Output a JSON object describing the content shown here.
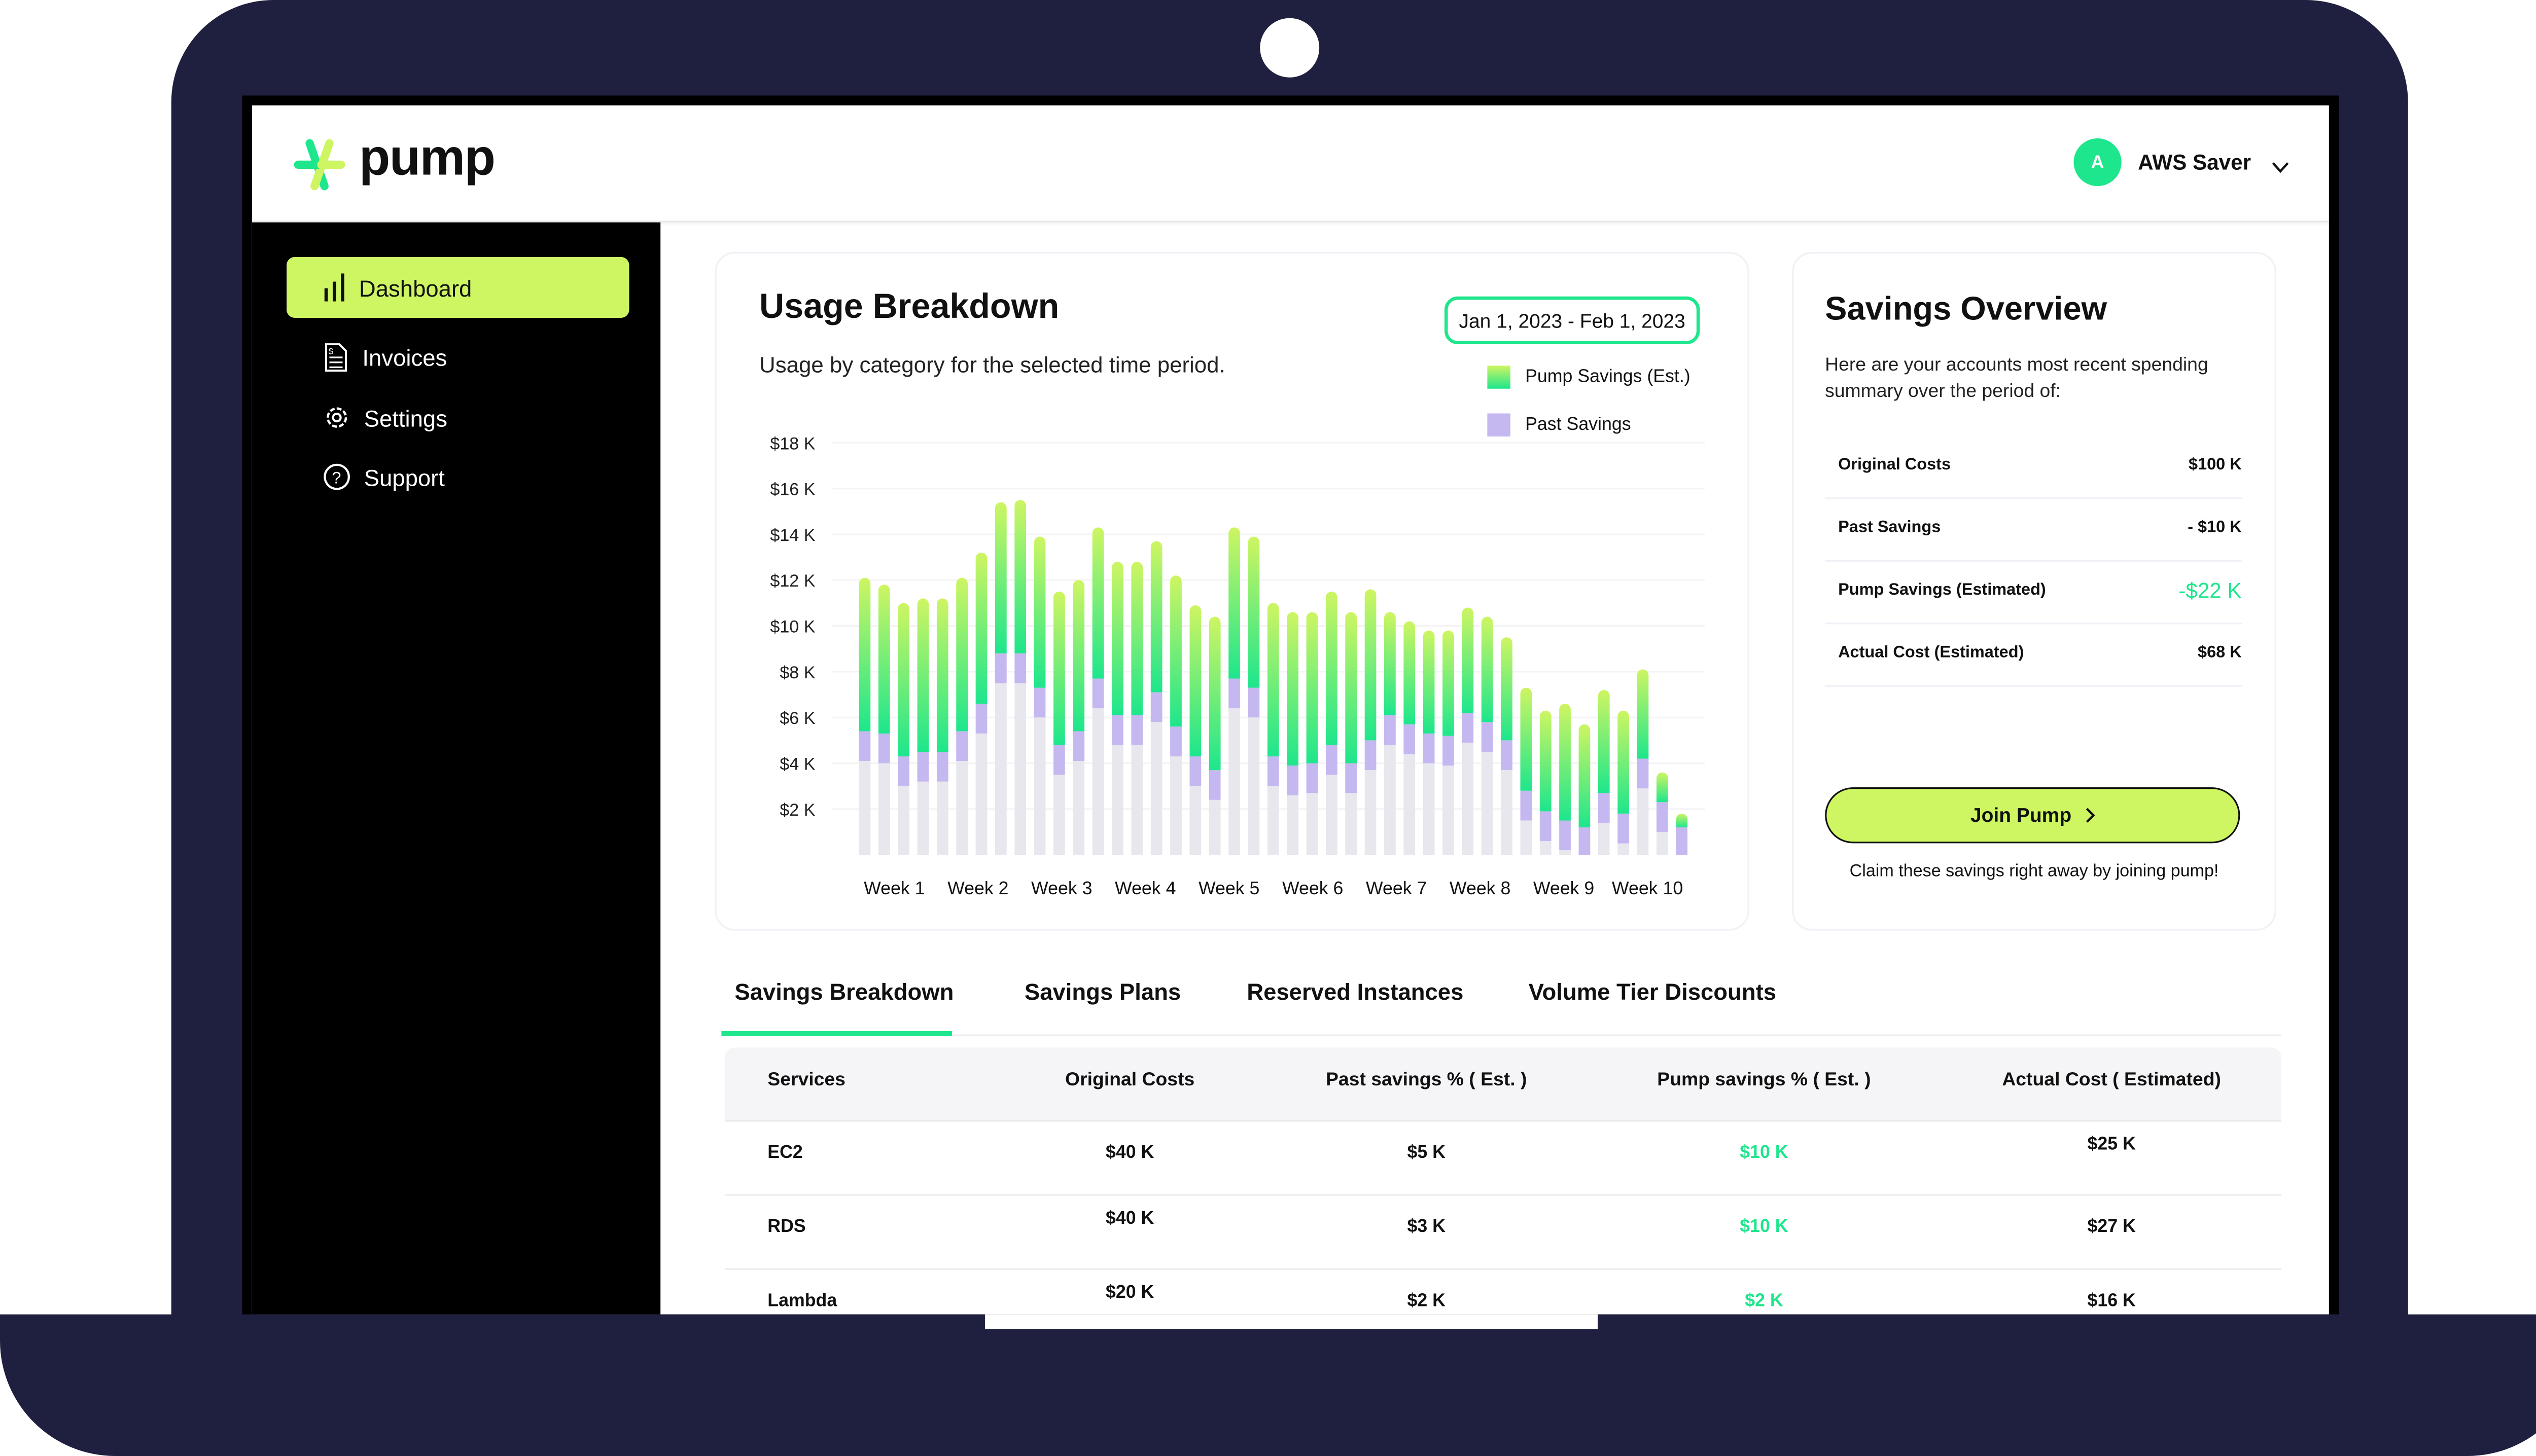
{
  "app": {
    "name": "pump"
  },
  "user": {
    "initial": "A",
    "name": "AWS Saver"
  },
  "sidebar": {
    "items": [
      {
        "label": "Dashboard",
        "icon": "bar-chart-icon",
        "active": true
      },
      {
        "label": "Invoices",
        "icon": "invoice-icon"
      },
      {
        "label": "Settings",
        "icon": "gear-icon"
      },
      {
        "label": "Support",
        "icon": "help-circle-icon"
      }
    ]
  },
  "usage": {
    "title": "Usage Breakdown",
    "subtitle": "Usage by category for the selected time period.",
    "date_range": "Jan 1, 2023 - Feb 1, 2023",
    "legend": [
      {
        "label": "Pump Savings (Est.)"
      },
      {
        "label": "Past Savings"
      }
    ]
  },
  "chart_data": {
    "type": "bar",
    "stacked": true,
    "yticks": [
      "$2 K",
      "$4 K",
      "$6 K",
      "$8 K",
      "$10 K",
      "$12 K",
      "$14 K",
      "$16 K",
      "$18 K"
    ],
    "ylim": [
      0,
      18
    ],
    "xticks": [
      "Week 1",
      "Week 2",
      "Week 3",
      "Week 4",
      "Week 5",
      "Week 6",
      "Week 7",
      "Week 8",
      "Week 9",
      "Week 10"
    ],
    "grid": true,
    "legend_position": "top-right",
    "series": [
      {
        "values": [
          4.1,
          4.0,
          3.0,
          3.2,
          3.2,
          4.1,
          5.3,
          7.5,
          7.5,
          6.0,
          3.5,
          4.1,
          6.4,
          4.8,
          4.8,
          5.8,
          4.3,
          3.0,
          2.4,
          6.4,
          6.0,
          3.0,
          2.6,
          2.7,
          3.5,
          2.7,
          3.7,
          4.8,
          4.4,
          4.0,
          3.9,
          4.9,
          4.5,
          3.7,
          1.5,
          0.6,
          0.2,
          0,
          1.4,
          0.5,
          2.9,
          1.0,
          0
        ],
        "color": "#e8e7ed"
      },
      {
        "name": "Past Savings",
        "values": [
          1.3,
          1.3,
          1.3,
          1.3,
          1.3,
          1.3,
          1.3,
          1.3,
          1.3,
          1.3,
          1.3,
          1.3,
          1.3,
          1.3,
          1.3,
          1.3,
          1.3,
          1.3,
          1.3,
          1.3,
          1.3,
          1.3,
          1.3,
          1.3,
          1.3,
          1.3,
          1.3,
          1.3,
          1.3,
          1.3,
          1.3,
          1.3,
          1.3,
          1.3,
          1.3,
          1.3,
          1.3,
          1.2,
          1.3,
          1.3,
          1.3,
          1.3,
          1.2
        ],
        "color": "#c5b8f0"
      },
      {
        "name": "Pump Savings (Est.)",
        "values": [
          6.7,
          6.5,
          6.7,
          6.7,
          6.7,
          6.7,
          6.6,
          6.6,
          6.7,
          6.6,
          6.7,
          6.6,
          6.6,
          6.7,
          6.7,
          6.6,
          6.6,
          6.6,
          6.7,
          6.6,
          6.6,
          6.7,
          6.7,
          6.6,
          6.7,
          6.6,
          6.6,
          4.5,
          4.5,
          4.5,
          4.6,
          4.6,
          4.6,
          4.5,
          4.5,
          4.4,
          5.1,
          4.5,
          4.5,
          4.5,
          3.9,
          1.3,
          0.6
        ],
        "color_top": "#cef562",
        "color_bottom": "#1ee68c"
      }
    ]
  },
  "overview": {
    "title": "Savings Overview",
    "description": "Here are your accounts most recent spending summary over the period of:",
    "rows": [
      {
        "label": "Original Costs",
        "value": "$100 K"
      },
      {
        "label": "Past Savings",
        "value": "- $10 K"
      },
      {
        "label": "Pump Savings (Estimated)",
        "value": "-$22 K"
      },
      {
        "label": "Actual Cost  (Estimated)",
        "value": "$68 K"
      }
    ],
    "join_label": "Join Pump",
    "claim_text": "Claim these savings right away by joining pump!"
  },
  "tabs": [
    {
      "label": "Savings Breakdown",
      "active": true
    },
    {
      "label": "Savings Plans"
    },
    {
      "label": "Reserved Instances"
    },
    {
      "label": "Volume Tier Discounts"
    }
  ],
  "table": {
    "headers": [
      "Services",
      "Original Costs",
      "Past savings % ( Est. )",
      "Pump savings % ( Est. )",
      "Actual Cost ( Estimated)"
    ],
    "rows": [
      [
        "EC2",
        "$40 K",
        "$5 K",
        "$10 K",
        "$25 K"
      ],
      [
        "RDS",
        "$40 K",
        "$3 K",
        "$10 K",
        "$27 K"
      ],
      [
        "Lambda",
        "$20 K",
        "$2 K",
        "$2 K",
        "$16 K"
      ]
    ]
  },
  "colors": {
    "accent": "#cef562",
    "green": "#1ee68c",
    "purple": "#c5b8f0",
    "frame": "#1f1f3f"
  }
}
